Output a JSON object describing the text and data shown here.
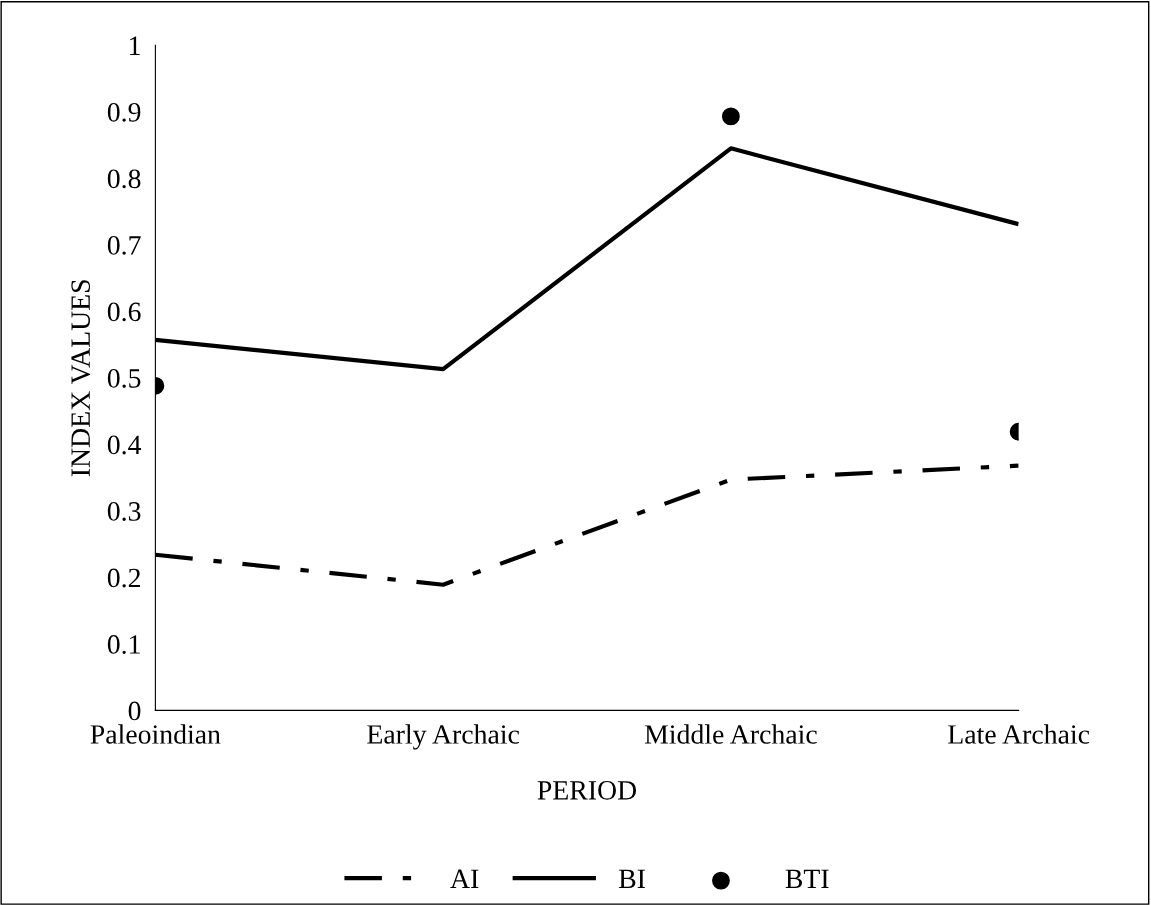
{
  "chart_data": {
    "type": "line",
    "xlabel": "PERIOD",
    "ylabel": "INDEX VALUES",
    "categories": [
      "Paleoindian",
      "Early Archaic",
      "Middle Archaic",
      "Late Archaic"
    ],
    "series": [
      {
        "name": "AI",
        "color": "#000000",
        "line_style": "dashdot",
        "marker": "none",
        "values": [
          0.234,
          0.189,
          0.347,
          0.368
        ]
      },
      {
        "name": "BI",
        "color": "#000000",
        "line_style": "solid",
        "marker": "none",
        "values": [
          0.557,
          0.513,
          0.845,
          0.731
        ]
      },
      {
        "name": "BTI",
        "type": "scatter",
        "color": "#000000",
        "marker": "circle",
        "values": [
          0.488,
          null,
          0.893,
          0.419
        ]
      }
    ],
    "ylim": [
      0,
      1
    ],
    "yticks": [
      0,
      0.1,
      0.2,
      0.3,
      0.4,
      0.5,
      0.6,
      0.7,
      0.8,
      0.9,
      1
    ],
    "grid": false,
    "legend": "bottom"
  }
}
